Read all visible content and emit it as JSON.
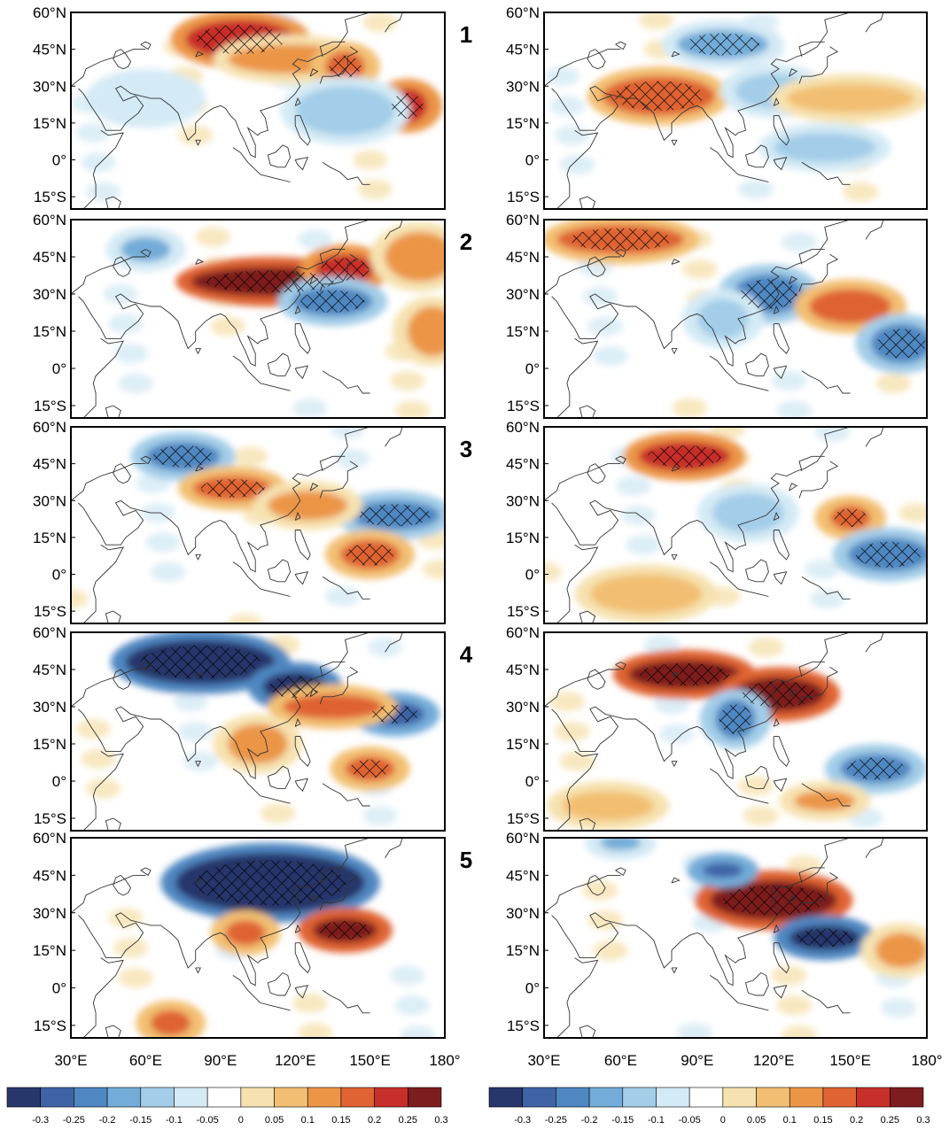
{
  "figure": {
    "row_labels": [
      "1",
      "2",
      "3",
      "4",
      "5"
    ],
    "lat_labels": [
      "60°N",
      "45°N",
      "30°N",
      "15°N",
      "0°",
      "15°S"
    ],
    "lon_labels": [
      "30°E",
      "60°E",
      "90°E",
      "120°E",
      "150°E",
      "180°"
    ],
    "colorbar": {
      "tick_labels": [
        "-0.3",
        "-0.25",
        "-0.2",
        "-0.15",
        "-0.1",
        "-0.05",
        "0",
        "0.05",
        "0.1",
        "0.15",
        "0.2",
        "0.25",
        "0.3"
      ],
      "colors": [
        "#27366b",
        "#3e63a6",
        "#4f87c1",
        "#73acd8",
        "#a3cde8",
        "#d4eaf5",
        "#ffffff",
        "#f6e2b0",
        "#f2bf72",
        "#eb9546",
        "#df6432",
        "#c72f2a",
        "#7e1d1f"
      ]
    }
  },
  "chart_data": {
    "type": "map",
    "description_units": "anomaly (colour scale -0.3 to 0.3)",
    "extent": {
      "lon": [
        30,
        180
      ],
      "lat": [
        -20,
        60
      ]
    },
    "panels": [
      {
        "row": 1,
        "col": "left",
        "blobs": [
          {
            "lon": 98,
            "lat": 49,
            "rx": 22,
            "ry": 8,
            "v": 0.27,
            "hatch": true
          },
          {
            "lon": 118,
            "lat": 41,
            "rx": 25,
            "ry": 6,
            "v": 0.16,
            "hatch": false
          },
          {
            "lon": 140,
            "lat": 38,
            "rx": 8,
            "ry": 6,
            "v": 0.22,
            "hatch": true
          },
          {
            "lon": 165,
            "lat": 22,
            "rx": 8,
            "ry": 7,
            "v": 0.24,
            "hatch": true
          },
          {
            "lon": 140,
            "lat": 20,
            "rx": 20,
            "ry": 10,
            "v": -0.08,
            "hatch": false
          },
          {
            "lon": 60,
            "lat": 25,
            "rx": 18,
            "ry": 8,
            "v": -0.06,
            "hatch": false
          }
        ]
      },
      {
        "row": 1,
        "col": "right",
        "blobs": [
          {
            "lon": 100,
            "lat": 47,
            "rx": 18,
            "ry": 6,
            "v": -0.17,
            "hatch": true
          },
          {
            "lon": 75,
            "lat": 26,
            "rx": 22,
            "ry": 8,
            "v": 0.18,
            "hatch": true
          },
          {
            "lon": 120,
            "lat": 28,
            "rx": 15,
            "ry": 7,
            "v": -0.1,
            "hatch": false
          },
          {
            "lon": 150,
            "lat": 25,
            "rx": 25,
            "ry": 6,
            "v": 0.1,
            "hatch": false
          },
          {
            "lon": 140,
            "lat": 5,
            "rx": 20,
            "ry": 6,
            "v": -0.08,
            "hatch": false
          }
        ]
      },
      {
        "row": 2,
        "col": "left",
        "blobs": [
          {
            "lon": 110,
            "lat": 35,
            "rx": 32,
            "ry": 6,
            "v": 0.28,
            "hatch": true
          },
          {
            "lon": 140,
            "lat": 40,
            "rx": 12,
            "ry": 6,
            "v": 0.24,
            "hatch": true
          },
          {
            "lon": 135,
            "lat": 27,
            "rx": 16,
            "ry": 6,
            "v": -0.18,
            "hatch": true
          },
          {
            "lon": 60,
            "lat": 48,
            "rx": 10,
            "ry": 5,
            "v": -0.15,
            "hatch": false
          },
          {
            "lon": 170,
            "lat": 45,
            "rx": 14,
            "ry": 10,
            "v": 0.14,
            "hatch": false
          },
          {
            "lon": 175,
            "lat": 15,
            "rx": 10,
            "ry": 10,
            "v": 0.15,
            "hatch": false
          }
        ]
      },
      {
        "row": 2,
        "col": "right",
        "blobs": [
          {
            "lon": 60,
            "lat": 52,
            "rx": 25,
            "ry": 6,
            "v": 0.2,
            "hatch": true
          },
          {
            "lon": 118,
            "lat": 30,
            "rx": 14,
            "ry": 8,
            "v": -0.2,
            "hatch": true
          },
          {
            "lon": 150,
            "lat": 25,
            "rx": 16,
            "ry": 7,
            "v": 0.2,
            "hatch": false
          },
          {
            "lon": 170,
            "lat": 10,
            "rx": 12,
            "ry": 8,
            "v": -0.2,
            "hatch": true
          },
          {
            "lon": 100,
            "lat": 20,
            "rx": 10,
            "ry": 8,
            "v": -0.12,
            "hatch": false
          }
        ]
      },
      {
        "row": 3,
        "col": "left",
        "blobs": [
          {
            "lon": 75,
            "lat": 48,
            "rx": 15,
            "ry": 6,
            "v": -0.2,
            "hatch": true
          },
          {
            "lon": 95,
            "lat": 35,
            "rx": 16,
            "ry": 5,
            "v": 0.22,
            "hatch": true
          },
          {
            "lon": 160,
            "lat": 24,
            "rx": 18,
            "ry": 6,
            "v": -0.22,
            "hatch": true
          },
          {
            "lon": 150,
            "lat": 8,
            "rx": 12,
            "ry": 6,
            "v": 0.22,
            "hatch": true
          },
          {
            "lon": 125,
            "lat": 28,
            "rx": 16,
            "ry": 6,
            "v": 0.15,
            "hatch": false
          }
        ]
      },
      {
        "row": 3,
        "col": "right",
        "blobs": [
          {
            "lon": 85,
            "lat": 48,
            "rx": 18,
            "ry": 6,
            "v": 0.24,
            "hatch": true
          },
          {
            "lon": 150,
            "lat": 23,
            "rx": 8,
            "ry": 5,
            "v": 0.22,
            "hatch": true
          },
          {
            "lon": 165,
            "lat": 8,
            "rx": 16,
            "ry": 7,
            "v": -0.22,
            "hatch": true
          },
          {
            "lon": 110,
            "lat": 25,
            "rx": 14,
            "ry": 8,
            "v": -0.12,
            "hatch": false
          },
          {
            "lon": 70,
            "lat": -8,
            "rx": 22,
            "ry": 8,
            "v": 0.1,
            "hatch": false
          }
        ]
      },
      {
        "row": 4,
        "col": "left",
        "blobs": [
          {
            "lon": 82,
            "lat": 48,
            "rx": 30,
            "ry": 9,
            "v": -0.29,
            "hatch": true
          },
          {
            "lon": 120,
            "lat": 38,
            "rx": 13,
            "ry": 6,
            "v": -0.3,
            "hatch": true
          },
          {
            "lon": 160,
            "lat": 27,
            "rx": 12,
            "ry": 5,
            "v": -0.25,
            "hatch": true
          },
          {
            "lon": 135,
            "lat": 30,
            "rx": 20,
            "ry": 5,
            "v": 0.2,
            "hatch": false
          },
          {
            "lon": 150,
            "lat": 5,
            "rx": 10,
            "ry": 5,
            "v": 0.2,
            "hatch": true
          },
          {
            "lon": 105,
            "lat": 15,
            "rx": 12,
            "ry": 8,
            "v": 0.15,
            "hatch": false
          }
        ]
      },
      {
        "row": 4,
        "col": "right",
        "blobs": [
          {
            "lon": 85,
            "lat": 43,
            "rx": 22,
            "ry": 6,
            "v": 0.28,
            "hatch": true
          },
          {
            "lon": 122,
            "lat": 35,
            "rx": 18,
            "ry": 7,
            "v": 0.3,
            "hatch": true
          },
          {
            "lon": 105,
            "lat": 25,
            "rx": 8,
            "ry": 8,
            "v": -0.2,
            "hatch": true
          },
          {
            "lon": 160,
            "lat": 5,
            "rx": 14,
            "ry": 6,
            "v": -0.18,
            "hatch": true
          },
          {
            "lon": 140,
            "lat": -8,
            "rx": 12,
            "ry": 4,
            "v": 0.15,
            "hatch": false
          },
          {
            "lon": 55,
            "lat": -10,
            "rx": 18,
            "ry": 6,
            "v": 0.12,
            "hatch": false
          }
        ]
      },
      {
        "row": 5,
        "col": "left",
        "blobs": [
          {
            "lon": 110,
            "lat": 42,
            "rx": 38,
            "ry": 12,
            "v": -0.3,
            "hatch": true
          },
          {
            "lon": 140,
            "lat": 23,
            "rx": 13,
            "ry": 5,
            "v": 0.28,
            "hatch": true
          },
          {
            "lon": 100,
            "lat": 22,
            "rx": 8,
            "ry": 5,
            "v": 0.18,
            "hatch": false
          },
          {
            "lon": 70,
            "lat": -14,
            "rx": 8,
            "ry": 5,
            "v": 0.2,
            "hatch": false
          }
        ]
      },
      {
        "row": 5,
        "col": "right",
        "blobs": [
          {
            "lon": 120,
            "lat": 35,
            "rx": 25,
            "ry": 8,
            "v": 0.3,
            "hatch": true
          },
          {
            "lon": 140,
            "lat": 20,
            "rx": 14,
            "ry": 5,
            "v": -0.28,
            "hatch": true
          },
          {
            "lon": 100,
            "lat": 47,
            "rx": 8,
            "ry": 3,
            "v": -0.25,
            "hatch": false
          },
          {
            "lon": 60,
            "lat": 58,
            "rx": 8,
            "ry": 3,
            "v": -0.15,
            "hatch": false
          },
          {
            "lon": 170,
            "lat": 15,
            "rx": 10,
            "ry": 7,
            "v": 0.15,
            "hatch": false
          }
        ]
      }
    ]
  }
}
